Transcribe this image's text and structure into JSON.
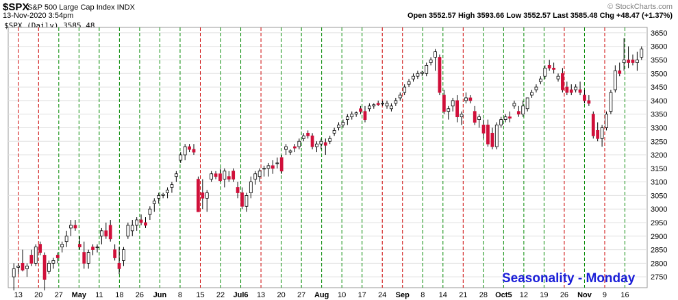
{
  "header": {
    "symbol": "$SPX",
    "name": "S&P 500 Large Cap Index INDX",
    "datetime": "13-Nov-2020 3:54pm",
    "brand": "© StockCharts.com",
    "legend": "$SPX (Daily) 3585.48",
    "ohlc": "Open 3552.57  High 3593.66  Low 3552.57  Last 3585.48  Chg +48.47 (+1.37%)"
  },
  "watermark": "Seasonality - Monday",
  "colors": {
    "up": "#ffffff",
    "down": "#d0103a",
    "red_line": "#cc0000",
    "green_line": "#008800",
    "watermark": "#1a1ed8"
  },
  "chart_data": {
    "type": "candlestick",
    "title": "$SPX S&P 500 Large Cap Index INDX",
    "ylim": [
      2710,
      3670
    ],
    "y_ticks": [
      2750,
      2800,
      2850,
      2900,
      2950,
      3000,
      3050,
      3100,
      3150,
      3200,
      3250,
      3300,
      3350,
      3400,
      3450,
      3500,
      3550,
      3600,
      3650
    ],
    "x_labels": [
      "13",
      "20",
      "27",
      "May",
      "11",
      "18",
      "26",
      "Jun",
      "8",
      "15",
      "22",
      "Jul6",
      "13",
      "20",
      "27",
      "Aug",
      "10",
      "17",
      "24",
      "Sep",
      "8",
      "14",
      "21",
      "28",
      "Oct5",
      "12",
      "19",
      "26",
      "Nov",
      "9",
      "16"
    ],
    "monday_lines": [
      {
        "label": "13",
        "color": "red"
      },
      {
        "label": "20",
        "color": "red"
      },
      {
        "label": "27",
        "color": "green"
      },
      {
        "label": "May",
        "color": "green"
      },
      {
        "label": "11",
        "color": "green"
      },
      {
        "label": "18",
        "color": "green"
      },
      {
        "label": "26",
        "color": "green"
      },
      {
        "label": "Jun",
        "color": "green"
      },
      {
        "label": "8",
        "color": "green"
      },
      {
        "label": "15",
        "color": "red"
      },
      {
        "label": "22",
        "color": "green"
      },
      {
        "label": "Jul6",
        "color": "green"
      },
      {
        "label": "13",
        "color": "red"
      },
      {
        "label": "20",
        "color": "green"
      },
      {
        "label": "27",
        "color": "green"
      },
      {
        "label": "Aug",
        "color": "green"
      },
      {
        "label": "10",
        "color": "green"
      },
      {
        "label": "17",
        "color": "green"
      },
      {
        "label": "24",
        "color": "red"
      },
      {
        "label": "Sep",
        "color": "red"
      },
      {
        "label": "8",
        "color": "green"
      },
      {
        "label": "14",
        "color": "green"
      },
      {
        "label": "21",
        "color": "red"
      },
      {
        "label": "28",
        "color": "green"
      },
      {
        "label": "Oct5",
        "color": "green"
      },
      {
        "label": "12",
        "color": "green"
      },
      {
        "label": "19",
        "color": "green"
      },
      {
        "label": "26",
        "color": "red"
      },
      {
        "label": "Nov",
        "color": "green"
      },
      {
        "label": "9",
        "color": "red"
      },
      {
        "label": "16",
        "color": "green"
      }
    ],
    "candles": [
      [
        2750,
        2800,
        2700,
        2780
      ],
      [
        2785,
        2800,
        2760,
        2790
      ],
      [
        2800,
        2850,
        2770,
        2775
      ],
      [
        2780,
        2800,
        2750,
        2790
      ],
      [
        2830,
        2850,
        2790,
        2800
      ],
      [
        2800,
        2870,
        2790,
        2860
      ],
      [
        2870,
        2880,
        2830,
        2840
      ],
      [
        2830,
        2840,
        2700,
        2740
      ],
      [
        2770,
        2810,
        2760,
        2800
      ],
      [
        2800,
        2820,
        2780,
        2810
      ],
      [
        2830,
        2840,
        2800,
        2820
      ],
      [
        2860,
        2880,
        2840,
        2870
      ],
      [
        2880,
        2920,
        2860,
        2900
      ],
      [
        2930,
        2960,
        2900,
        2940
      ],
      [
        2940,
        2960,
        2920,
        2930
      ],
      [
        2870,
        2900,
        2850,
        2860
      ],
      [
        2840,
        2880,
        2780,
        2800
      ],
      [
        2800,
        2850,
        2780,
        2840
      ],
      [
        2860,
        2870,
        2830,
        2850
      ],
      [
        2860,
        2870,
        2840,
        2860
      ],
      [
        2900,
        2930,
        2870,
        2920
      ],
      [
        2920,
        2950,
        2890,
        2900
      ],
      [
        2940,
        2960,
        2880,
        2890
      ],
      [
        2850,
        2870,
        2810,
        2820
      ],
      [
        2800,
        2860,
        2760,
        2780
      ],
      [
        2810,
        2860,
        2790,
        2850
      ],
      [
        2900,
        2950,
        2890,
        2940
      ],
      [
        2920,
        2960,
        2900,
        2940
      ],
      [
        2940,
        2970,
        2920,
        2960
      ],
      [
        2960,
        2980,
        2940,
        2950
      ],
      [
        2950,
        2970,
        2930,
        2940
      ],
      [
        2980,
        3010,
        2960,
        3000
      ],
      [
        3020,
        3040,
        2990,
        3030
      ],
      [
        3040,
        3060,
        3020,
        3050
      ],
      [
        3050,
        3060,
        3040,
        3055
      ],
      [
        3060,
        3080,
        3040,
        3070
      ],
      [
        3080,
        3100,
        3060,
        3090
      ],
      [
        3120,
        3140,
        3100,
        3130
      ],
      [
        3180,
        3210,
        3170,
        3200
      ],
      [
        3200,
        3240,
        3180,
        3230
      ],
      [
        3230,
        3240,
        3210,
        3220
      ],
      [
        3220,
        3240,
        3200,
        3210
      ],
      [
        3110,
        3120,
        2990,
        2990
      ],
      [
        3060,
        3110,
        3000,
        3040
      ],
      [
        3040,
        3070,
        2990,
        3060
      ],
      [
        3110,
        3140,
        3100,
        3130
      ],
      [
        3130,
        3140,
        3110,
        3120
      ],
      [
        3130,
        3150,
        3100,
        3105
      ],
      [
        3110,
        3150,
        3080,
        3140
      ],
      [
        3120,
        3140,
        3100,
        3110
      ],
      [
        3140,
        3150,
        3100,
        3110
      ],
      [
        3080,
        3100,
        3040,
        3060
      ],
      [
        3060,
        3080,
        3000,
        3010
      ],
      [
        3010,
        3060,
        2990,
        3050
      ],
      [
        3060,
        3120,
        3040,
        3100
      ],
      [
        3110,
        3140,
        3090,
        3130
      ],
      [
        3120,
        3150,
        3100,
        3140
      ],
      [
        3150,
        3160,
        3120,
        3150
      ],
      [
        3150,
        3170,
        3120,
        3160
      ],
      [
        3160,
        3180,
        3130,
        3150
      ],
      [
        3170,
        3190,
        3150,
        3170
      ],
      [
        3190,
        3200,
        3130,
        3140
      ],
      [
        3220,
        3240,
        3200,
        3230
      ],
      [
        3210,
        3220,
        3200,
        3215
      ],
      [
        3230,
        3240,
        3210,
        3225
      ],
      [
        3230,
        3260,
        3220,
        3250
      ],
      [
        3260,
        3280,
        3250,
        3270
      ],
      [
        3280,
        3290,
        3260,
        3270
      ],
      [
        3270,
        3280,
        3220,
        3230
      ],
      [
        3230,
        3250,
        3210,
        3240
      ],
      [
        3240,
        3260,
        3220,
        3250
      ],
      [
        3245,
        3260,
        3200,
        3235
      ],
      [
        3250,
        3270,
        3240,
        3260
      ],
      [
        3280,
        3300,
        3270,
        3290
      ],
      [
        3300,
        3320,
        3290,
        3310
      ],
      [
        3310,
        3330,
        3300,
        3320
      ],
      [
        3330,
        3350,
        3310,
        3340
      ],
      [
        3340,
        3360,
        3330,
        3350
      ],
      [
        3350,
        3360,
        3340,
        3355
      ],
      [
        3370,
        3380,
        3350,
        3360
      ],
      [
        3360,
        3380,
        3320,
        3330
      ],
      [
        3370,
        3390,
        3360,
        3380
      ],
      [
        3380,
        3390,
        3370,
        3385
      ],
      [
        3390,
        3400,
        3380,
        3385
      ],
      [
        3390,
        3400,
        3380,
        3390
      ],
      [
        3380,
        3400,
        3370,
        3390
      ],
      [
        3370,
        3390,
        3360,
        3380
      ],
      [
        3390,
        3410,
        3380,
        3400
      ],
      [
        3410,
        3430,
        3400,
        3420
      ],
      [
        3430,
        3460,
        3420,
        3450
      ],
      [
        3460,
        3480,
        3450,
        3470
      ],
      [
        3480,
        3500,
        3470,
        3490
      ],
      [
        3490,
        3510,
        3480,
        3500
      ],
      [
        3500,
        3510,
        3490,
        3505
      ],
      [
        3500,
        3540,
        3490,
        3530
      ],
      [
        3540,
        3560,
        3530,
        3550
      ],
      [
        3560,
        3590,
        3510,
        3580
      ],
      [
        3560,
        3570,
        3420,
        3430
      ],
      [
        3420,
        3440,
        3350,
        3360
      ],
      [
        3360,
        3380,
        3330,
        3370
      ],
      [
        3380,
        3410,
        3360,
        3400
      ],
      [
        3400,
        3420,
        3320,
        3340
      ],
      [
        3340,
        3360,
        3310,
        3350
      ],
      [
        3400,
        3430,
        3390,
        3410
      ],
      [
        3410,
        3420,
        3390,
        3400
      ],
      [
        3360,
        3380,
        3310,
        3320
      ],
      [
        3330,
        3350,
        3300,
        3340
      ],
      [
        3310,
        3330,
        3260,
        3280
      ],
      [
        3310,
        3330,
        3230,
        3240
      ],
      [
        3280,
        3300,
        3220,
        3230
      ],
      [
        3230,
        3320,
        3220,
        3310
      ],
      [
        3310,
        3340,
        3300,
        3330
      ],
      [
        3330,
        3350,
        3320,
        3340
      ],
      [
        3340,
        3360,
        3320,
        3335
      ],
      [
        3380,
        3400,
        3370,
        3390
      ],
      [
        3360,
        3380,
        3340,
        3350
      ],
      [
        3350,
        3400,
        3340,
        3380
      ],
      [
        3370,
        3410,
        3360,
        3410
      ],
      [
        3420,
        3440,
        3410,
        3430
      ],
      [
        3440,
        3460,
        3430,
        3450
      ],
      [
        3470,
        3490,
        3460,
        3480
      ],
      [
        3490,
        3530,
        3480,
        3520
      ],
      [
        3530,
        3550,
        3510,
        3520
      ],
      [
        3520,
        3540,
        3500,
        3515
      ],
      [
        3480,
        3500,
        3470,
        3490
      ],
      [
        3500,
        3520,
        3430,
        3440
      ],
      [
        3450,
        3470,
        3420,
        3430
      ],
      [
        3440,
        3460,
        3420,
        3430
      ],
      [
        3440,
        3460,
        3430,
        3450
      ],
      [
        3440,
        3470,
        3420,
        3430
      ],
      [
        3420,
        3440,
        3390,
        3400
      ],
      [
        3400,
        3420,
        3380,
        3390
      ],
      [
        3350,
        3360,
        3260,
        3270
      ],
      [
        3290,
        3320,
        3250,
        3260
      ],
      [
        3260,
        3310,
        3230,
        3300
      ],
      [
        3300,
        3360,
        3290,
        3350
      ],
      [
        3360,
        3440,
        3350,
        3430
      ],
      [
        3440,
        3530,
        3430,
        3510
      ],
      [
        3510,
        3540,
        3490,
        3500
      ],
      [
        3540,
        3630,
        3510,
        3550
      ],
      [
        3550,
        3600,
        3520,
        3540
      ],
      [
        3550,
        3570,
        3530,
        3540
      ],
      [
        3540,
        3580,
        3510,
        3550
      ],
      [
        3560,
        3600,
        3550,
        3590
      ]
    ]
  }
}
